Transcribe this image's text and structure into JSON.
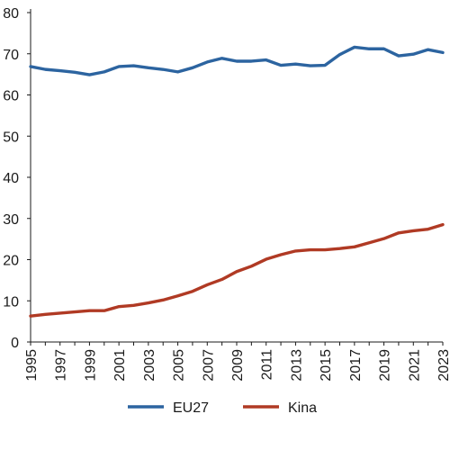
{
  "chart_data": {
    "type": "line",
    "title": "",
    "xlabel": "",
    "ylabel": "",
    "ylim": [
      0,
      80
    ],
    "yticks": [
      0,
      10,
      20,
      30,
      40,
      50,
      60,
      70,
      80
    ],
    "xlim": [
      1995,
      2023
    ],
    "xticks": [
      "1995",
      "1997",
      "1999",
      "2001",
      "2003",
      "2005",
      "2007",
      "2009",
      "2011",
      "2013",
      "2015",
      "2017",
      "2019",
      "2021",
      "2023"
    ],
    "x": [
      1995,
      1996,
      1997,
      1998,
      1999,
      2000,
      2001,
      2002,
      2003,
      2004,
      2005,
      2006,
      2007,
      2008,
      2009,
      2010,
      2011,
      2012,
      2013,
      2014,
      2015,
      2016,
      2017,
      2018,
      2019,
      2020,
      2021,
      2022,
      2023
    ],
    "grid": false,
    "legend_position": "bottom",
    "series": [
      {
        "name": "EU27",
        "color": "#2c64a0",
        "values": [
          66.9,
          66.2,
          65.9,
          65.5,
          64.9,
          65.6,
          66.9,
          67.1,
          66.6,
          66.2,
          65.6,
          66.6,
          68.0,
          68.9,
          68.2,
          68.2,
          68.5,
          67.2,
          67.5,
          67.1,
          67.2,
          69.8,
          71.6,
          71.2,
          71.2,
          69.5,
          69.9,
          71.0,
          70.3
        ]
      },
      {
        "name": "Kina",
        "color": "#b03a24",
        "values": [
          6.3,
          6.7,
          7.0,
          7.3,
          7.6,
          7.6,
          8.6,
          8.9,
          9.5,
          10.2,
          11.2,
          12.3,
          13.9,
          15.2,
          17.1,
          18.4,
          20.1,
          21.2,
          22.1,
          22.4,
          22.4,
          22.7,
          23.1,
          24.1,
          25.1,
          26.5,
          27.0,
          27.4,
          28.5
        ]
      }
    ]
  }
}
